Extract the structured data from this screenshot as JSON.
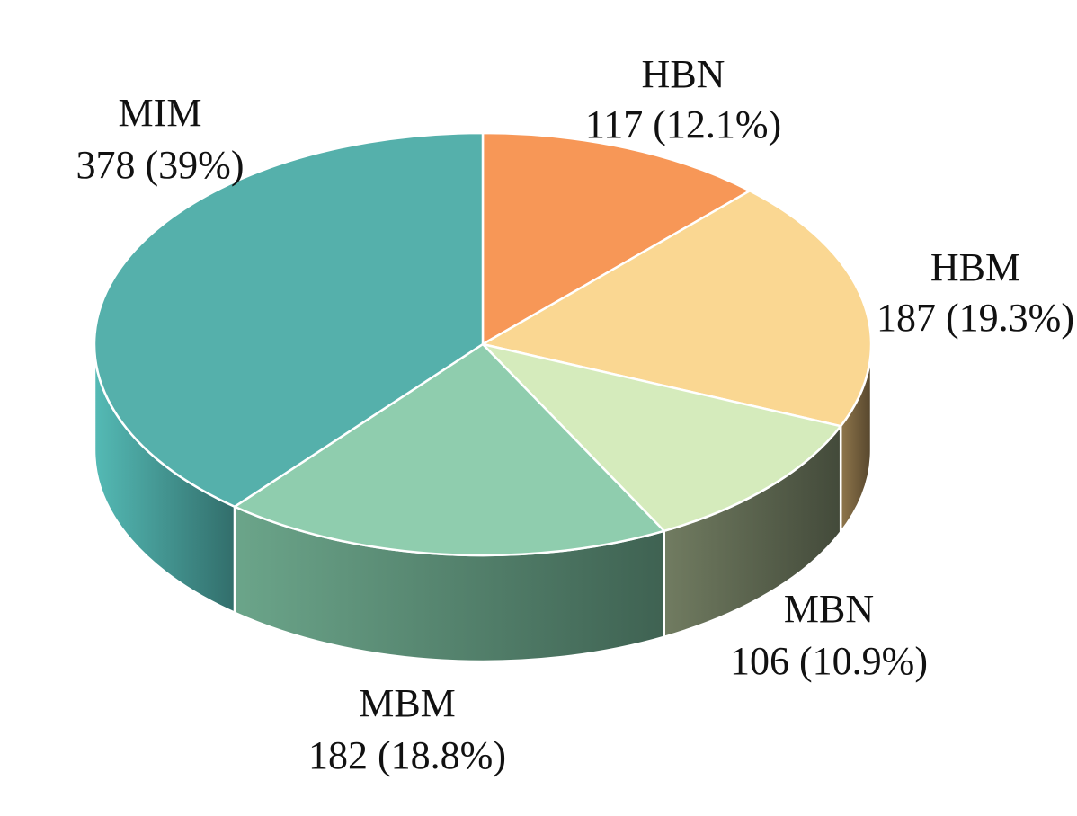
{
  "chart_data": {
    "type": "pie",
    "style": "3d",
    "title": "",
    "start": "top, clockwise",
    "slices": [
      {
        "name": "HBN",
        "value": 117,
        "percent": "12.1%",
        "value_text": "117 (12.1%)",
        "color": "#F79757",
        "side_color": "#B86A36"
      },
      {
        "name": "HBM",
        "value": 187,
        "percent": "19.3%",
        "value_text": "187 (19.3%)",
        "color": "#FAD792",
        "side_color": "#6B5838"
      },
      {
        "name": "MBN",
        "value": 106,
        "percent": "10.9%",
        "value_text": "106 (10.9%)",
        "color": "#D5EBBC",
        "side_color": "#545C48"
      },
      {
        "name": "MBM",
        "value": 182,
        "percent": "18.8%",
        "value_text": "182 (18.8%)",
        "color": "#8FCDAE",
        "side_color": "#4F7A66"
      },
      {
        "name": "MIM",
        "value": 378,
        "percent": "39%",
        "value_text": "378 (39%)",
        "color": "#55B0AB",
        "side_color": "#3E8A86"
      }
    ]
  }
}
